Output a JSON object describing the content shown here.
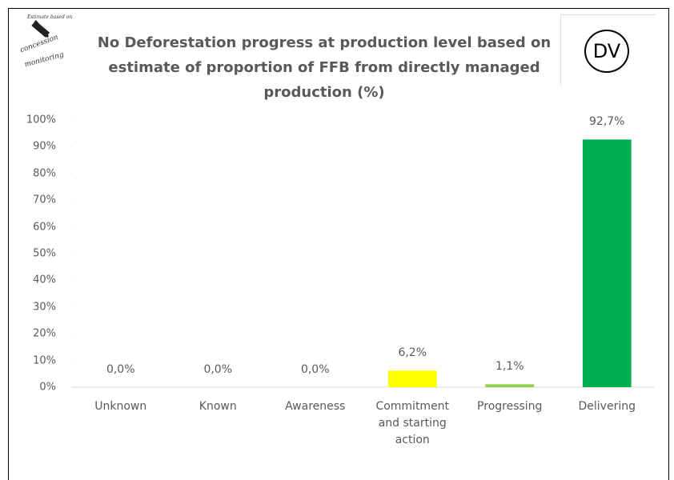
{
  "chart_data": {
    "type": "bar",
    "title": "No Deforestation progress at production level based on estimate of proportion of FFB from directly managed production (%)",
    "logo_text": [
      "Estimate based on",
      "concession",
      "monitoring"
    ],
    "badge": "DV",
    "categories": [
      "Unknown",
      "Known",
      "Awareness",
      "Commitment and starting action",
      "Progressing",
      "Delivering"
    ],
    "values": [
      0,
      0,
      0,
      6.2,
      1.1,
      92.7
    ],
    "value_labels": [
      "0,0%",
      "0,0%",
      "0,0%",
      "6,2%",
      "1,1%",
      "92,7%"
    ],
    "colors": [
      "#00b050",
      "#00b050",
      "#00b050",
      "#ffff00",
      "#92d050",
      "#00b050"
    ],
    "ylim": [
      0,
      100
    ],
    "yticks": [
      {
        "value": 0,
        "label": "0%"
      },
      {
        "value": 10,
        "label": "10%"
      },
      {
        "value": 20,
        "label": "20%"
      },
      {
        "value": 30,
        "label": "30%"
      },
      {
        "value": 40,
        "label": "40%"
      },
      {
        "value": 50,
        "label": "50%"
      },
      {
        "value": 60,
        "label": "60%"
      },
      {
        "value": 70,
        "label": "70%"
      },
      {
        "value": 80,
        "label": "80%"
      },
      {
        "value": 90,
        "label": "90%"
      },
      {
        "value": 100,
        "label": "100%"
      }
    ],
    "grid": false
  }
}
